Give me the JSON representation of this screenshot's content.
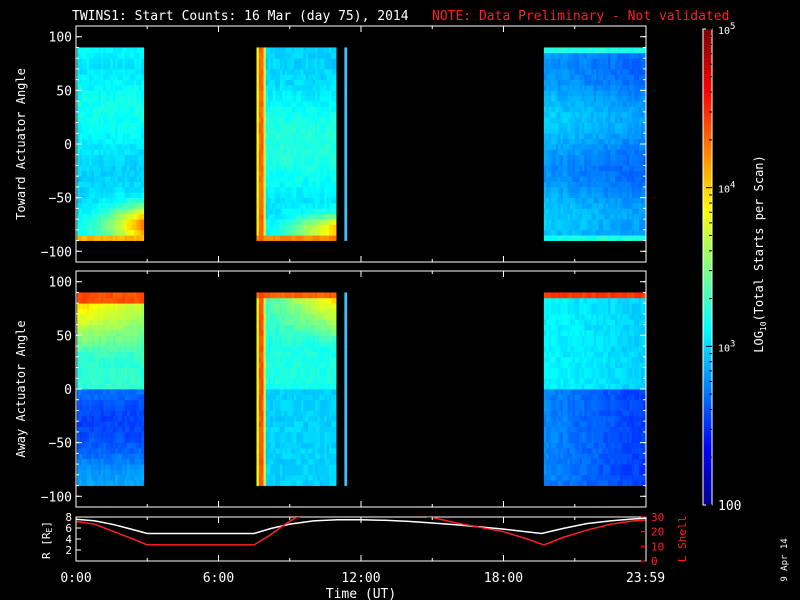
{
  "header": {
    "title": "TWINS1: Start Counts: 16 Mar (day  75), 2014",
    "note": "NOTE: Data Preliminary - Not validated"
  },
  "side_date": "9 Apr 14",
  "colors": {
    "background": "#000000",
    "axis": "#ffffff",
    "note": "#ff2020",
    "lshell": "#ff2020",
    "radius": "#ffffff"
  },
  "chart_data": [
    {
      "type": "heatmap",
      "name": "toward",
      "ylabel": "Toward Actuator Angle",
      "ylim": [
        -110,
        110
      ],
      "yticks": [
        "100",
        "50",
        "0",
        "−50",
        "−100"
      ],
      "ytick_values": [
        100,
        50,
        0,
        -50,
        -100
      ],
      "x_unit": "hours UT",
      "xlim": [
        0,
        24
      ],
      "angle_range": [
        -90,
        90
      ],
      "color_scale": "log",
      "data_blocks": [
        {
          "start": 0.05,
          "end": 2.85,
          "pattern": "toward-morning"
        },
        {
          "start": 7.6,
          "end": 10.95,
          "pattern": "toward-midday"
        },
        {
          "start": 11.3,
          "end": 11.4,
          "pattern": "strip"
        },
        {
          "start": 19.7,
          "end": 24.0,
          "pattern": "toward-evening"
        }
      ]
    },
    {
      "type": "heatmap",
      "name": "away",
      "ylabel": "Away Actuator Angle",
      "ylim": [
        -110,
        110
      ],
      "yticks": [
        "100",
        "50",
        "0",
        "−50",
        "−100"
      ],
      "ytick_values": [
        100,
        50,
        0,
        -50,
        -100
      ],
      "x_unit": "hours UT",
      "xlim": [
        0,
        24
      ],
      "angle_range": [
        -90,
        90
      ],
      "color_scale": "log",
      "data_blocks": [
        {
          "start": 0.05,
          "end": 2.85,
          "pattern": "away-morning"
        },
        {
          "start": 7.6,
          "end": 10.95,
          "pattern": "away-midday"
        },
        {
          "start": 11.3,
          "end": 11.4,
          "pattern": "strip"
        },
        {
          "start": 19.7,
          "end": 24.0,
          "pattern": "away-evening"
        }
      ]
    },
    {
      "type": "line",
      "name": "orbit",
      "ylabel_left": "R [R",
      "ylabel_left_sub": "E",
      "ylabel_left_end": "]",
      "ylabel_right": "L Shell",
      "yticks_left": [
        "8",
        "6",
        "4",
        "2"
      ],
      "ytick_values_left": [
        8,
        6,
        4,
        2
      ],
      "ylim_left": [
        0,
        8
      ],
      "yticks_right": [
        "30",
        "20",
        "10",
        "0"
      ],
      "ytick_values_right": [
        30,
        20,
        10,
        0
      ],
      "ylim_right": [
        0,
        30
      ],
      "xlabel": "Time (UT)",
      "xticks": [
        "0:00",
        "6:00",
        "12:00",
        "18:00",
        "23:59"
      ],
      "xtick_values": [
        0,
        6,
        12,
        18,
        23.98
      ],
      "xlim": [
        0,
        24
      ],
      "series": [
        {
          "name": "R",
          "axis": "left",
          "x": [
            0,
            0.8,
            1.6,
            2.4,
            3.0,
            7.5,
            8.2,
            9.0,
            10.0,
            11.0,
            12.0,
            13.0,
            14.0,
            15.0,
            16.0,
            17.0,
            18.0,
            19.0,
            19.6,
            20.5,
            21.5,
            22.5,
            23.3,
            24.0
          ],
          "y": [
            7.6,
            7.3,
            6.6,
            5.7,
            5.0,
            5.0,
            5.9,
            6.7,
            7.3,
            7.5,
            7.5,
            7.4,
            7.2,
            6.9,
            6.6,
            6.2,
            5.8,
            5.3,
            5.0,
            5.9,
            6.8,
            7.3,
            7.6,
            7.8
          ]
        },
        {
          "name": "L Shell",
          "axis": "right",
          "x": [
            0,
            0.8,
            1.6,
            2.4,
            3.0,
            7.5,
            8.2,
            8.8,
            9.3,
            9.6,
            14.6,
            15.2,
            16.0,
            17.0,
            18.0,
            19.0,
            19.7,
            20.5,
            21.5,
            22.5,
            23.3,
            24.0
          ],
          "y": [
            27,
            25,
            20,
            15,
            11,
            11,
            18,
            25,
            30,
            31,
            31,
            29,
            26,
            23,
            20,
            15,
            11,
            16,
            21,
            25,
            27,
            28
          ]
        }
      ]
    }
  ],
  "colorbar": {
    "label_main": "LOG",
    "label_sub": "10",
    "label_end": "(Total Starts per Scan)",
    "ticks": [
      {
        "base": "10",
        "exp": "5",
        "plain": ""
      },
      {
        "base": "10",
        "exp": "4",
        "plain": ""
      },
      {
        "base": "10",
        "exp": "3",
        "plain": ""
      },
      {
        "base": "",
        "exp": "",
        "plain": "100"
      }
    ],
    "tick_values": [
      100000,
      10000,
      1000,
      100
    ],
    "range": [
      100,
      100000
    ]
  }
}
